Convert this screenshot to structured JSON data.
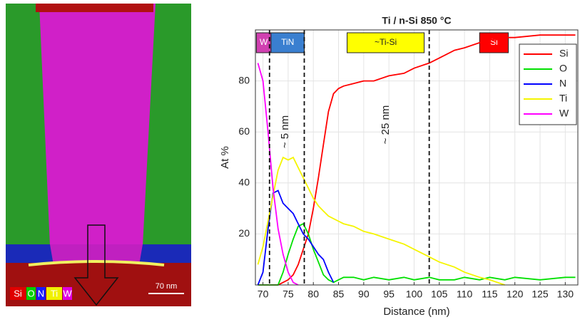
{
  "map_image": {
    "element_labels": [
      {
        "text": "Si",
        "color": "#e00000"
      },
      {
        "text": "O",
        "color": "#00d000"
      },
      {
        "text": "N",
        "color": "#1a1aff"
      },
      {
        "text": "Ti",
        "color": "#f0f000"
      },
      {
        "text": "W",
        "color": "#e000e0"
      }
    ],
    "scale_bar": "70 nm"
  },
  "chart_data": {
    "type": "line",
    "title": "Ti / n-Si 850 °C",
    "x_label": "Distance (nm)",
    "y_label": "At %",
    "x": [
      69,
      70,
      71,
      72,
      73,
      74,
      75,
      76,
      77,
      78,
      79,
      80,
      81,
      82,
      83,
      84,
      85,
      86,
      88,
      90,
      92,
      95,
      98,
      100,
      103,
      105,
      108,
      110,
      113,
      115,
      118,
      120,
      125,
      130,
      132
    ],
    "series": [
      {
        "name": "Si",
        "color": "#ff0000",
        "values": [
          0,
          0,
          0,
          0,
          0,
          1,
          2,
          4,
          8,
          14,
          20,
          30,
          42,
          55,
          68,
          75,
          77,
          78,
          79,
          80,
          80,
          82,
          83,
          85,
          87,
          89,
          92,
          93,
          95,
          96,
          97,
          97,
          98,
          98,
          98
        ]
      },
      {
        "name": "O",
        "color": "#00e000",
        "values": [
          0,
          0,
          0,
          0,
          0,
          5,
          12,
          18,
          23,
          24,
          20,
          14,
          9,
          4,
          2,
          1,
          2,
          3,
          3,
          2,
          3,
          2,
          3,
          2,
          3,
          2,
          2,
          3,
          2,
          3,
          2,
          3,
          2,
          3,
          3
        ]
      },
      {
        "name": "N",
        "color": "#0000ff",
        "values": [
          0,
          5,
          22,
          36,
          37,
          32,
          30,
          28,
          24,
          20,
          18,
          15,
          12,
          10,
          5,
          1,
          null,
          null,
          null,
          null,
          null,
          null,
          null,
          null,
          null,
          null,
          null,
          null,
          null,
          null,
          null,
          null,
          null,
          null,
          null
        ]
      },
      {
        "name": "Ti",
        "color": "#f5f500",
        "values": [
          8,
          15,
          25,
          35,
          45,
          50,
          49,
          50,
          46,
          42,
          38,
          34,
          31,
          29,
          27,
          26,
          25,
          24,
          23,
          21,
          20,
          18,
          16,
          14,
          11,
          9,
          7,
          5,
          3,
          2,
          0,
          null,
          null,
          null,
          null
        ]
      },
      {
        "name": "W",
        "color": "#ff00ff",
        "values": [
          87,
          80,
          60,
          38,
          22,
          12,
          5,
          1,
          0,
          null,
          null,
          null,
          null,
          null,
          null,
          null,
          null,
          null,
          null,
          null,
          null,
          null,
          null,
          null,
          null,
          null,
          null,
          null,
          null,
          null,
          null,
          null,
          null,
          null,
          null
        ]
      }
    ],
    "xlim": [
      68.5,
      132.5
    ],
    "xticks": [
      70,
      75,
      80,
      85,
      90,
      95,
      100,
      105,
      110,
      115,
      120,
      125,
      130
    ],
    "ylim": [
      0,
      100
    ],
    "yticks": [
      20,
      40,
      60,
      80
    ],
    "grid": true,
    "legend": "upper right",
    "vlines": [
      71.3,
      78.2,
      103
    ],
    "regions": [
      {
        "label": "W",
        "color": "#d040b0",
        "span": [
          68.7,
          71.6
        ]
      },
      {
        "label": "TiN",
        "color": "#3a7fd0",
        "span": [
          71.6,
          78.2
        ]
      },
      {
        "label": "~Ti-Si",
        "color": "#ffff00",
        "span": [
          86.7,
          102
        ]
      },
      {
        "label": "Si",
        "color": "#ff0000",
        "span": [
          113,
          118.7
        ]
      }
    ],
    "annotations": [
      "~ 5 nm",
      "~ 25 nm"
    ]
  }
}
